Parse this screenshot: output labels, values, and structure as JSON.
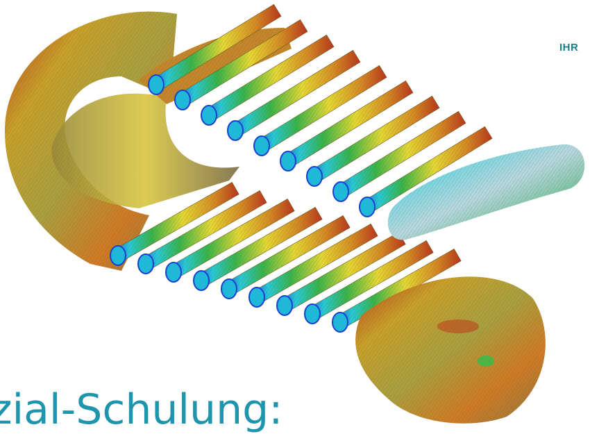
{
  "logo": {
    "text": "IHR",
    "color": "#137f8c"
  },
  "title": {
    "text": "zial-Schulung:",
    "color": "#1e94ad"
  },
  "scene": {
    "subject": "coil-winding-field-visualization",
    "upper_turn_count": 9,
    "lower_turn_count": 9,
    "palette": [
      "#0a2bd1",
      "#1fd3e0",
      "#2fbf4a",
      "#e8e23a",
      "#d46a1f",
      "#b0221a"
    ]
  }
}
